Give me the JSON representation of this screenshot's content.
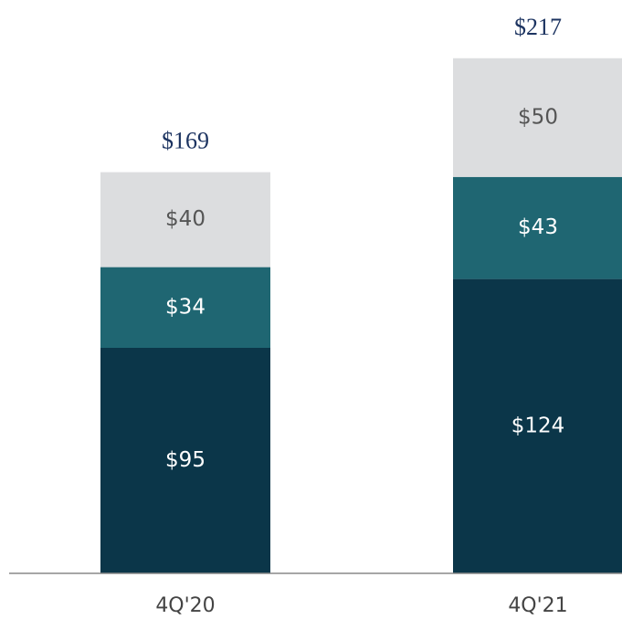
{
  "chart_data": {
    "type": "stacked-bar",
    "categories": [
      "4Q'20",
      "4Q'21"
    ],
    "series": [
      {
        "color": "#0b3649",
        "values": [
          95,
          124
        ],
        "value_labels": [
          "$95",
          "$124"
        ]
      },
      {
        "color": "#1f6672",
        "values": [
          34,
          43
        ],
        "value_labels": [
          "$34",
          "$43"
        ]
      },
      {
        "color": "#dcdddf",
        "values": [
          40,
          50
        ],
        "value_labels": [
          "$40",
          "$50"
        ]
      }
    ],
    "totals": [
      169,
      217
    ],
    "total_labels": [
      "$169",
      "$217"
    ],
    "ylim": [
      0,
      240
    ]
  }
}
